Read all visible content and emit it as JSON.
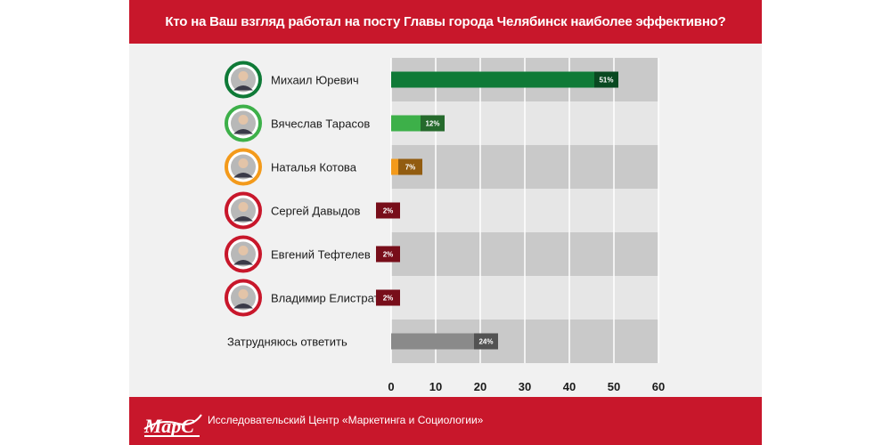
{
  "header": {
    "title": "Кто на Ваш взгляд работал на посту Главы города Челябинск наиболее эффективно?"
  },
  "footer": {
    "logo_text": "МарС",
    "org_name": "Исследовательский Центр «Маркетинга и Социологии»"
  },
  "colors": {
    "brand_red": "#c8172b",
    "green_dark": "#0f7a37",
    "green_light": "#3db049",
    "orange": "#f39a1b",
    "red": "#c8172b",
    "gray": "#8a8a8a"
  },
  "chart_data": {
    "type": "bar",
    "orientation": "horizontal",
    "categories": [
      "Михаил Юревич",
      "Вячеслав Тарасов",
      "Наталья Котова",
      "Сергей Давыдов",
      "Евгений Тефтелев",
      "Владимир Елистратов",
      "Затрудняюсь ответить"
    ],
    "values": [
      51,
      12,
      7,
      2,
      2,
      2,
      24
    ],
    "value_labels": [
      "51%",
      "12%",
      "7%",
      "2%",
      "2%",
      "2%",
      "24%"
    ],
    "bar_colors": [
      "#0f7a37",
      "#3db049",
      "#f39a1b",
      "#c8172b",
      "#c8172b",
      "#c8172b",
      "#8a8a8a"
    ],
    "has_portrait": [
      true,
      true,
      true,
      true,
      true,
      true,
      false
    ],
    "xlim": [
      0,
      60
    ],
    "xticks": [
      0,
      10,
      20,
      30,
      40,
      50,
      60
    ],
    "grid": true
  }
}
